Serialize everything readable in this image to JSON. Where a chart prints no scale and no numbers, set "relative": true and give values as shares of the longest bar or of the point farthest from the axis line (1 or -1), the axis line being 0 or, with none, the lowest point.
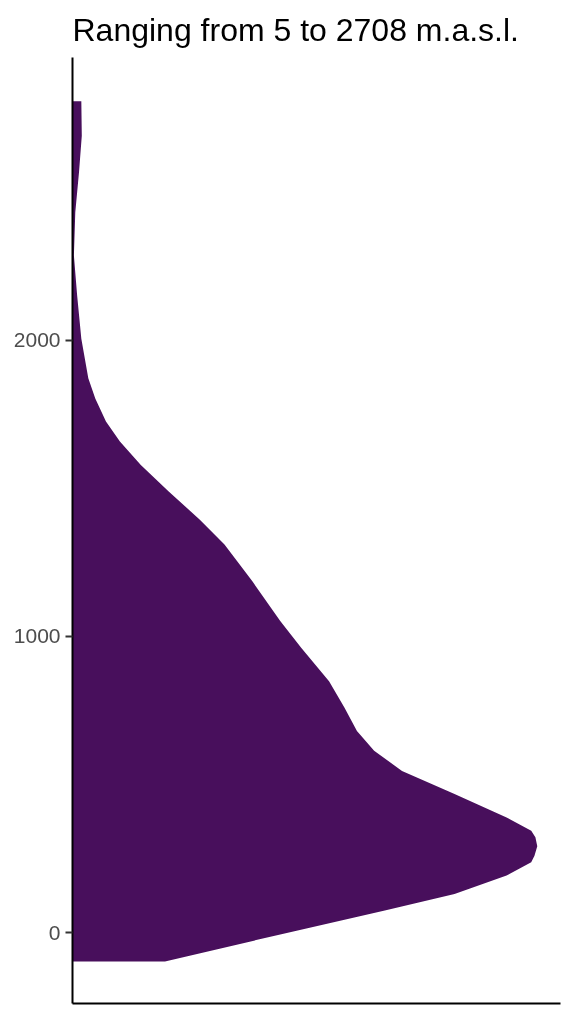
{
  "chart_data": {
    "type": "area",
    "title": "Ranging from 5 to 2708 m.a.s.l.",
    "orientation": "horizontal",
    "relative": true,
    "tick_labels": "y",
    "color": "#480f5c",
    "x": [
      -97,
      -6,
      75,
      131,
      193,
      238,
      260,
      292,
      322,
      344,
      389,
      468,
      546,
      614,
      681,
      760,
      849,
      962,
      1052,
      1186,
      1310,
      1394,
      1489,
      1579,
      1658,
      1725,
      1803,
      1871,
      2005,
      2151,
      2286,
      2432,
      2567,
      2690,
      2806
    ],
    "values": [
      0.199,
      0.447,
      0.672,
      0.822,
      0.934,
      0.987,
      0.994,
      1.0,
      0.996,
      0.987,
      0.934,
      0.822,
      0.709,
      0.649,
      0.612,
      0.585,
      0.552,
      0.492,
      0.447,
      0.387,
      0.327,
      0.274,
      0.207,
      0.147,
      0.102,
      0.072,
      0.049,
      0.034,
      0.019,
      0.01,
      0.003,
      0.006,
      0.014,
      0.02,
      0.019
    ],
    "ylim": [
      -239,
      2954
    ],
    "yticks": [
      0,
      1000,
      2000
    ]
  }
}
